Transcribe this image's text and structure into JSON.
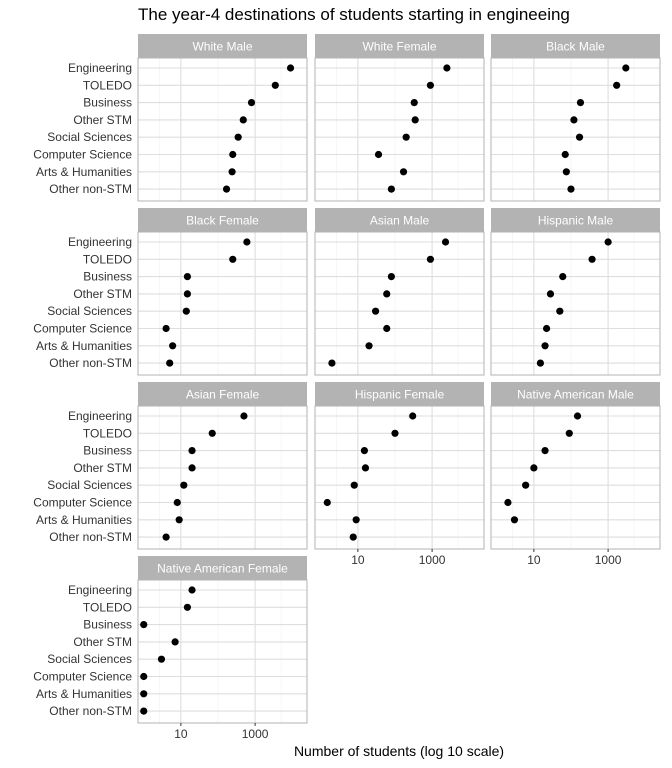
{
  "chart_data": {
    "type": "scatter",
    "title": "The year-4 destinations of students starting in engineeing",
    "xlabel": "Number of students (log 10 scale)",
    "ylabel": "",
    "x_scale": "log10",
    "x_ticks": [
      10,
      1000
    ],
    "x_tick_labels": [
      "10",
      "1000"
    ],
    "xlim": [
      0.7,
      25000
    ],
    "grid": true,
    "categories": [
      "Engineering",
      "TOLEDO",
      "Business",
      "Other STM",
      "Social Sciences",
      "Computer Science",
      "Arts & Humanities",
      "Other non-STM"
    ],
    "panels": [
      {
        "name": "White Male",
        "values": [
          9000,
          3500,
          800,
          480,
          350,
          250,
          240,
          170
        ]
      },
      {
        "name": "White Female",
        "values": [
          2500,
          900,
          330,
          350,
          200,
          36,
          170,
          80
        ]
      },
      {
        "name": "Black Male",
        "values": [
          3000,
          1700,
          180,
          120,
          170,
          70,
          75,
          100
        ]
      },
      {
        "name": "Black Female",
        "values": [
          600,
          250,
          15,
          15,
          14,
          4,
          6,
          5
        ]
      },
      {
        "name": "Asian Male",
        "values": [
          2300,
          900,
          80,
          60,
          30,
          60,
          20,
          2
        ]
      },
      {
        "name": "Hispanic Male",
        "values": [
          1000,
          370,
          60,
          28,
          50,
          22,
          20,
          15
        ]
      },
      {
        "name": "Asian Female",
        "values": [
          500,
          70,
          20,
          20,
          12,
          8,
          9,
          4
        ]
      },
      {
        "name": "Hispanic Female",
        "values": [
          300,
          100,
          15,
          16,
          8,
          1.5,
          9,
          7.5
        ]
      },
      {
        "name": "Native American Male",
        "values": [
          150,
          90,
          20,
          10,
          6,
          2,
          3,
          null
        ]
      },
      {
        "name": "Native American Female",
        "values": [
          20,
          15,
          1,
          7,
          3,
          1,
          1,
          1
        ]
      }
    ]
  }
}
